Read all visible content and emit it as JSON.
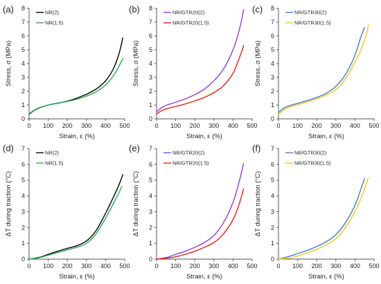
{
  "colors": {
    "black": "#000000",
    "green": "#2ca84f",
    "purple": "#8e3fd1",
    "red": "#e0201b",
    "blue": "#3f7fc4",
    "gold": "#f4c21e",
    "axis": "#555555",
    "grid": "none"
  },
  "chart_data": [
    {
      "panel": "(a)",
      "type": "line",
      "xlabel": "Strain, ε (%)",
      "ylabel": "Stress, σ (MPa)",
      "xlim": [
        0,
        500
      ],
      "ylim": [
        0,
        8
      ],
      "xticks": [
        0,
        100,
        200,
        300,
        400,
        500
      ],
      "yticks": [
        0,
        1,
        2,
        3,
        4,
        5,
        6,
        7,
        8
      ],
      "grid": false,
      "legend": "top-left",
      "series": [
        {
          "name": "NR(2)",
          "color": "black",
          "x": [
            0,
            25,
            50,
            100,
            150,
            200,
            250,
            300,
            350,
            400,
            440,
            470,
            490
          ],
          "y": [
            0.35,
            0.6,
            0.78,
            1.0,
            1.13,
            1.28,
            1.5,
            1.78,
            2.15,
            2.75,
            3.6,
            4.7,
            5.85
          ]
        },
        {
          "name": "NR(1.5)",
          "color": "green",
          "x": [
            0,
            25,
            50,
            100,
            150,
            200,
            250,
            300,
            350,
            400,
            440,
            470,
            490
          ],
          "y": [
            0.32,
            0.58,
            0.76,
            1.0,
            1.14,
            1.26,
            1.42,
            1.65,
            1.95,
            2.45,
            3.1,
            3.8,
            4.35
          ]
        }
      ]
    },
    {
      "panel": "(b)",
      "type": "line",
      "xlabel": "Strain, ε (%)",
      "ylabel": "Stress, σ (MPa)",
      "xlim": [
        0,
        500
      ],
      "ylim": [
        0,
        8
      ],
      "xticks": [
        0,
        100,
        200,
        300,
        400,
        500
      ],
      "yticks": [
        0,
        1,
        2,
        3,
        4,
        5,
        6,
        7,
        8
      ],
      "grid": false,
      "legend": "top-left",
      "series": [
        {
          "name": "NR/GTR20(2)",
          "color": "purple",
          "x": [
            0,
            25,
            50,
            100,
            150,
            200,
            250,
            300,
            350,
            400,
            430,
            450,
            455
          ],
          "y": [
            0.5,
            0.8,
            0.98,
            1.2,
            1.45,
            1.75,
            2.15,
            2.75,
            3.6,
            5.0,
            6.3,
            7.5,
            7.9
          ]
        },
        {
          "name": "NR/GTR20(1.5)",
          "color": "red",
          "x": [
            0,
            25,
            50,
            100,
            150,
            200,
            250,
            300,
            350,
            400,
            430,
            450,
            455
          ],
          "y": [
            0.35,
            0.58,
            0.72,
            0.9,
            1.08,
            1.3,
            1.55,
            1.9,
            2.4,
            3.3,
            4.3,
            5.05,
            5.3
          ]
        }
      ]
    },
    {
      "panel": "(c)",
      "type": "line",
      "xlabel": "Strain, ε (%)",
      "ylabel": "Stress, σ (MPa)",
      "xlim": [
        0,
        500
      ],
      "ylim": [
        0,
        8
      ],
      "xticks": [
        0,
        100,
        200,
        300,
        400,
        500
      ],
      "yticks": [
        0,
        1,
        2,
        3,
        4,
        5,
        6,
        7,
        8
      ],
      "grid": false,
      "legend": "top-left",
      "series": [
        {
          "name": "NR/GTR30(2)",
          "color": "blue",
          "x": [
            0,
            25,
            50,
            100,
            150,
            200,
            250,
            300,
            350,
            400,
            430,
            450
          ],
          "y": [
            0.45,
            0.75,
            0.92,
            1.12,
            1.32,
            1.55,
            1.85,
            2.35,
            3.2,
            4.6,
            5.9,
            6.6
          ]
        },
        {
          "name": "NR/GTR30(1.5)",
          "color": "gold",
          "x": [
            0,
            25,
            50,
            100,
            150,
            200,
            250,
            300,
            350,
            400,
            440,
            465,
            470
          ],
          "y": [
            0.3,
            0.62,
            0.82,
            1.02,
            1.22,
            1.45,
            1.72,
            2.1,
            2.9,
            4.1,
            5.3,
            6.4,
            6.8
          ]
        }
      ]
    },
    {
      "panel": "(d)",
      "type": "line",
      "xlabel": "Strain, ε (%)",
      "ylabel": "ΔT during traction (°C)",
      "xlim": [
        0,
        500
      ],
      "ylim": [
        0,
        7
      ],
      "xticks": [
        0,
        100,
        200,
        300,
        400,
        500
      ],
      "yticks": [
        0,
        1,
        2,
        3,
        4,
        5,
        6,
        7
      ],
      "grid": false,
      "legend": "top-left",
      "series": [
        {
          "name": "NR(2)",
          "color": "black",
          "x": [
            0,
            50,
            100,
            150,
            200,
            250,
            300,
            350,
            400,
            440,
            470,
            490
          ],
          "y": [
            0.0,
            0.1,
            0.3,
            0.5,
            0.68,
            0.85,
            1.15,
            1.8,
            2.9,
            3.9,
            4.7,
            5.35
          ]
        },
        {
          "name": "NR(1.5)",
          "color": "green",
          "x": [
            0,
            50,
            100,
            150,
            200,
            250,
            300,
            350,
            400,
            440,
            470,
            485
          ],
          "y": [
            0.0,
            0.08,
            0.25,
            0.42,
            0.58,
            0.75,
            1.0,
            1.6,
            2.6,
            3.5,
            4.2,
            4.6
          ]
        }
      ]
    },
    {
      "panel": "(e)",
      "type": "line",
      "xlabel": "Strain, ε (%)",
      "ylabel": "ΔT during traction (°C)",
      "xlim": [
        0,
        500
      ],
      "ylim": [
        0,
        7
      ],
      "xticks": [
        0,
        100,
        200,
        300,
        400,
        500
      ],
      "yticks": [
        0,
        1,
        2,
        3,
        4,
        5,
        6,
        7
      ],
      "grid": false,
      "legend": "top-left",
      "series": [
        {
          "name": "NR/GTR20(2)",
          "color": "purple",
          "x": [
            0,
            50,
            100,
            150,
            200,
            250,
            300,
            350,
            400,
            430,
            455
          ],
          "y": [
            0.0,
            0.1,
            0.3,
            0.5,
            0.75,
            1.05,
            1.5,
            2.3,
            3.6,
            4.8,
            6.05
          ]
        },
        {
          "name": "NR/GTR20(1.5)",
          "color": "red",
          "x": [
            0,
            50,
            100,
            150,
            200,
            250,
            300,
            350,
            400,
            430,
            455
          ],
          "y": [
            0.0,
            0.05,
            0.15,
            0.3,
            0.5,
            0.75,
            1.05,
            1.6,
            2.5,
            3.4,
            4.45
          ]
        }
      ]
    },
    {
      "panel": "(f)",
      "type": "line",
      "xlabel": "Strain, ε (%)",
      "ylabel": "ΔT during traction (°C)",
      "xlim": [
        0,
        500
      ],
      "ylim": [
        0,
        7
      ],
      "xticks": [
        0,
        100,
        200,
        300,
        400,
        500
      ],
      "yticks": [
        0,
        1,
        2,
        3,
        4,
        5,
        6,
        7
      ],
      "grid": false,
      "legend": "top-left",
      "series": [
        {
          "name": "NR/GTR30(2)",
          "color": "blue",
          "x": [
            0,
            50,
            100,
            150,
            200,
            250,
            300,
            350,
            400,
            430,
            450
          ],
          "y": [
            0.0,
            0.15,
            0.35,
            0.55,
            0.8,
            1.1,
            1.55,
            2.3,
            3.4,
            4.4,
            5.1
          ]
        },
        {
          "name": "NR/GTR30(1.5)",
          "color": "gold",
          "x": [
            0,
            50,
            100,
            150,
            200,
            250,
            300,
            350,
            400,
            440,
            470
          ],
          "y": [
            0.0,
            0.05,
            0.2,
            0.4,
            0.62,
            0.9,
            1.3,
            2.0,
            3.0,
            4.1,
            5.15
          ]
        }
      ]
    }
  ]
}
